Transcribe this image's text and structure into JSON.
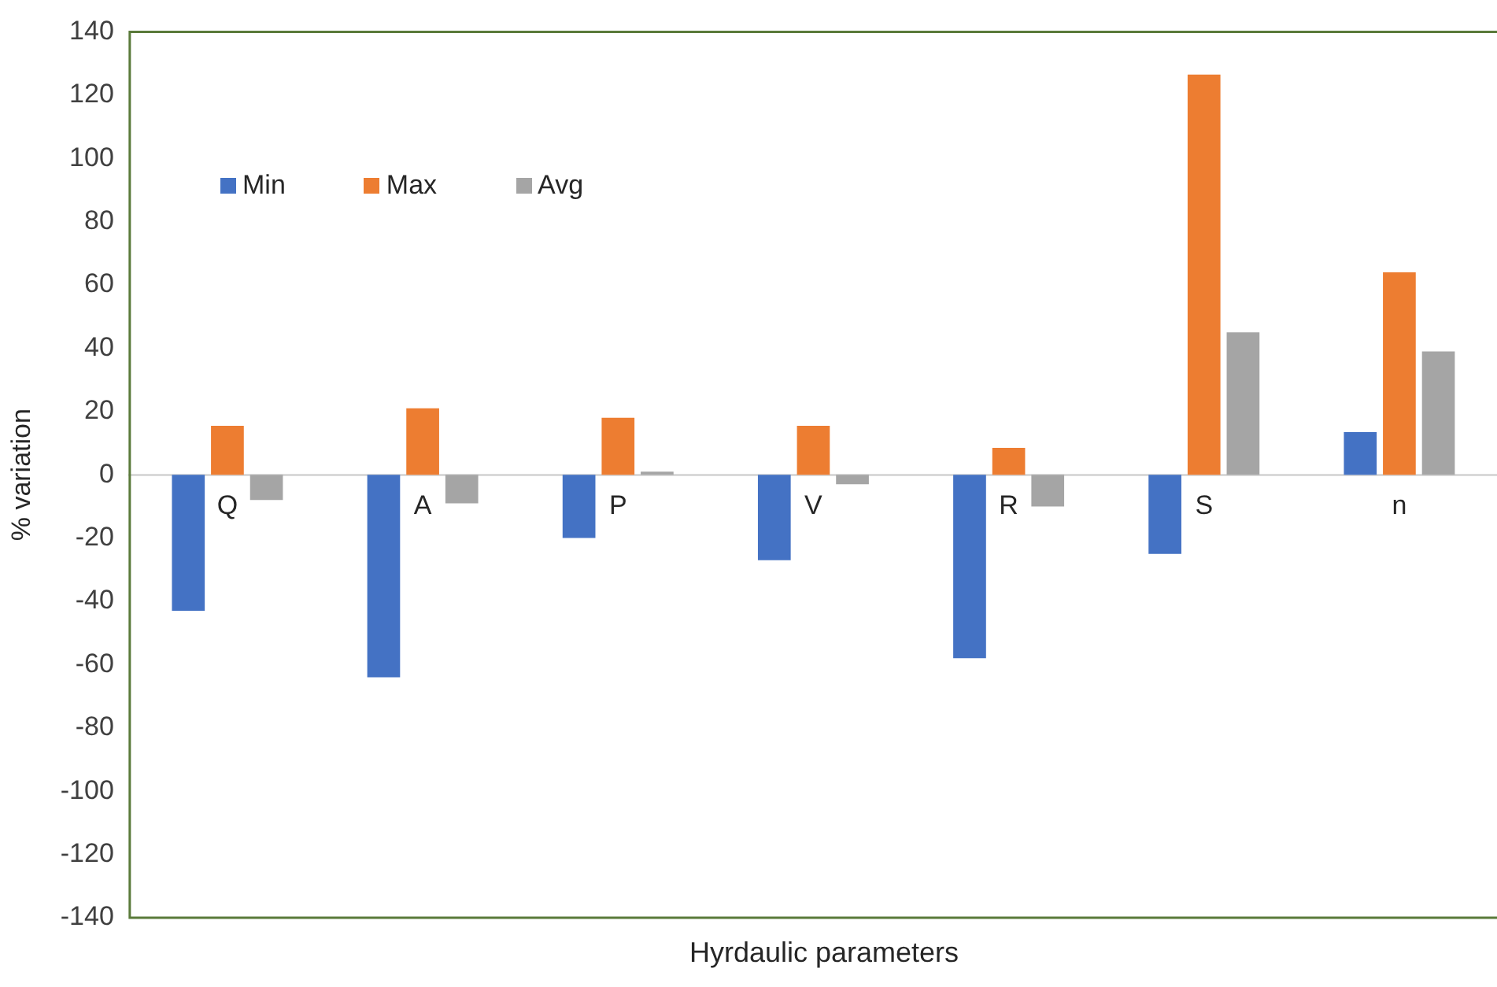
{
  "chart_data": {
    "type": "bar",
    "xlabel": "Hyrdaulic parameters",
    "ylabel": "% variation",
    "categories": [
      "Q",
      "A",
      "P",
      "V",
      "R",
      "S",
      "n"
    ],
    "series": [
      {
        "name": "Min",
        "color": "#4472c4",
        "values": [
          -43,
          -64,
          -20,
          -27,
          -58,
          -25,
          13.5
        ]
      },
      {
        "name": "Max",
        "color": "#ed7d31",
        "values": [
          15.5,
          21,
          18,
          15.5,
          8.5,
          126.5,
          64
        ]
      },
      {
        "name": "Avg",
        "color": "#a5a5a5",
        "values": [
          -8,
          -9,
          1,
          -3,
          -10,
          45,
          39
        ]
      }
    ],
    "ylim": [
      -140,
      140
    ],
    "yticks": [
      -140,
      -120,
      -100,
      -80,
      -60,
      -40,
      -20,
      0,
      20,
      40,
      60,
      80,
      100,
      120,
      140
    ],
    "grid": false,
    "legend": "top left"
  }
}
